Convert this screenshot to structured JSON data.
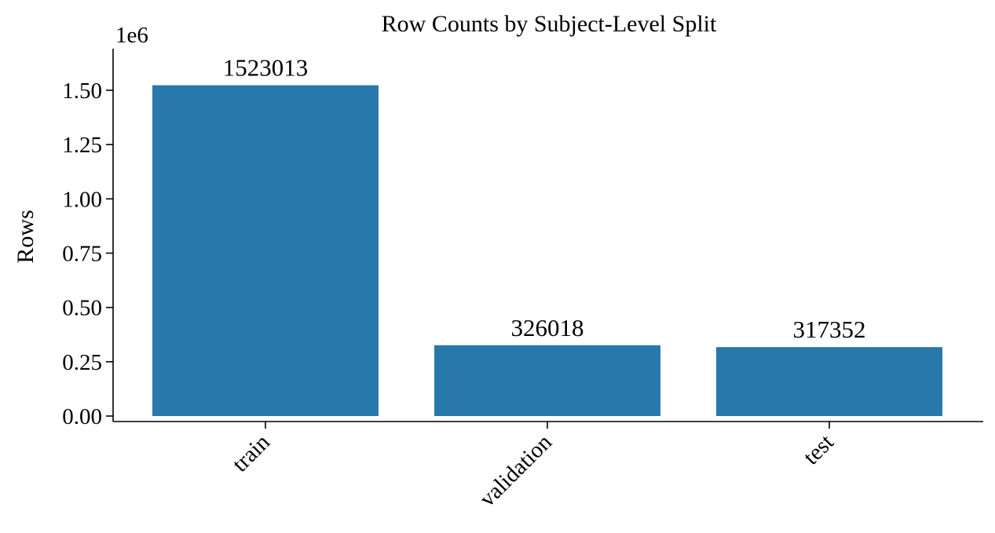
{
  "chart_data": {
    "type": "bar",
    "title": "Row Counts by Subject-Level Split",
    "xlabel": "",
    "ylabel": "Rows",
    "y_offset_label": "1e6",
    "y_scale": 1000000,
    "categories": [
      "train",
      "validation",
      "test"
    ],
    "values": [
      1523013,
      326018,
      317352
    ],
    "data_labels": [
      "1523013",
      "326018",
      "317352"
    ],
    "ylim": [
      0,
      1.67
    ],
    "yticks": [
      0,
      0.25,
      0.5,
      0.75,
      1.0,
      1.25,
      1.5
    ],
    "ytick_labels": [
      "0.00",
      "0.25",
      "0.50",
      "0.75",
      "1.00",
      "1.25",
      "1.50"
    ],
    "bar_color": "#2878ab",
    "grid": false,
    "xtick_rotation": -45
  }
}
